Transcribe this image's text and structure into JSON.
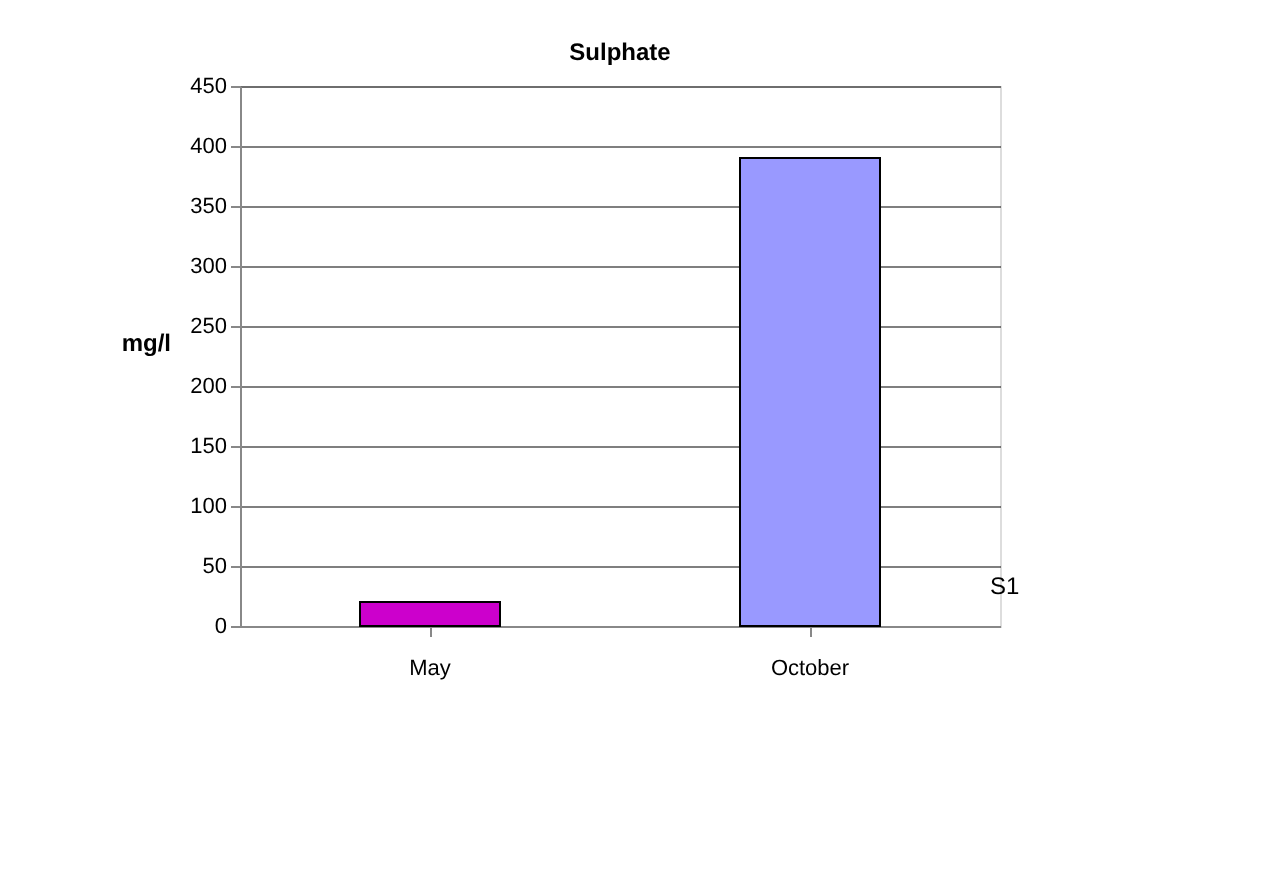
{
  "chart_data": {
    "type": "bar",
    "title": "Sulphate",
    "ylabel": "mg/l",
    "categories": [
      "May",
      "October"
    ],
    "series": [
      {
        "name": "S1",
        "values": [
          20,
          390
        ],
        "colors": [
          "#cc00cc",
          "#9999ff"
        ]
      }
    ],
    "ylim": [
      0,
      450
    ],
    "yticks": [
      0,
      50,
      100,
      150,
      200,
      250,
      300,
      350,
      400,
      450
    ],
    "grid": "y"
  }
}
